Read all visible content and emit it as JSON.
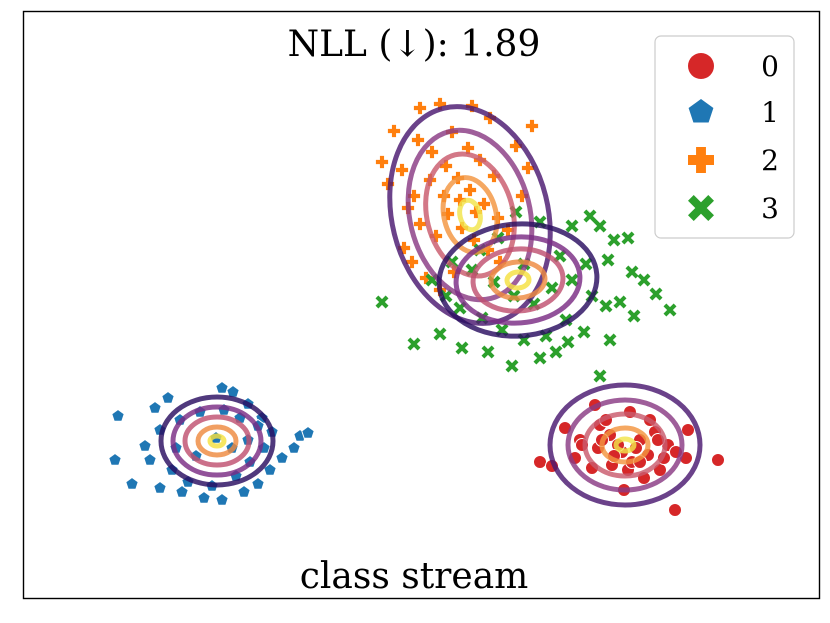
{
  "chart_data": {
    "type": "scatter",
    "title": "NLL (↓): 1.89",
    "xlabel": "class stream",
    "ylabel": "",
    "axes_ticks": false,
    "grid": false,
    "legend": {
      "placement": "top-right",
      "entries": [
        "0",
        "1",
        "2",
        "3"
      ]
    },
    "series": [
      {
        "name": "0",
        "marker": "circle",
        "color": "#d62728",
        "points": [
          [
            595,
            405
          ],
          [
            630,
            412
          ],
          [
            565,
            428
          ],
          [
            580,
            440
          ],
          [
            598,
            448
          ],
          [
            610,
            435
          ],
          [
            622,
            452
          ],
          [
            640,
            440
          ],
          [
            655,
            432
          ],
          [
            668,
            445
          ],
          [
            688,
            430
          ],
          [
            686,
            458
          ],
          [
            660,
            470
          ],
          [
            644,
            478
          ],
          [
            628,
            470
          ],
          [
            612,
            465
          ],
          [
            592,
            468
          ],
          [
            575,
            458
          ],
          [
            540,
            462
          ],
          [
            552,
            466
          ],
          [
            600,
            425
          ],
          [
            618,
            445
          ],
          [
            632,
            462
          ],
          [
            648,
            455
          ],
          [
            664,
            458
          ],
          [
            676,
            452
          ],
          [
            624,
            490
          ],
          [
            675,
            510
          ],
          [
            718,
            460
          ],
          [
            602,
            440
          ],
          [
            614,
            456
          ],
          [
            636,
            448
          ],
          [
            582,
            445
          ],
          [
            650,
            420
          ],
          [
            606,
            420
          ],
          [
            640,
            462
          ],
          [
            658,
            440
          ]
        ],
        "contours": [
          {
            "cx": 625,
            "cy": 445,
            "rx": 75,
            "ry": 60,
            "c": "#4a1870"
          },
          {
            "cx": 625,
            "cy": 445,
            "rx": 57,
            "ry": 45,
            "c": "#8a3a84"
          },
          {
            "cx": 625,
            "cy": 445,
            "rx": 40,
            "ry": 31,
            "c": "#c95a6c"
          },
          {
            "cx": 625,
            "cy": 445,
            "rx": 23,
            "ry": 17,
            "c": "#f39540"
          },
          {
            "cx": 625,
            "cy": 445,
            "rx": 9,
            "ry": 6,
            "c": "#f2e44a"
          }
        ]
      },
      {
        "name": "1",
        "marker": "pentagon",
        "color": "#1f77b4",
        "points": [
          [
            118,
            416
          ],
          [
            155,
            408
          ],
          [
            168,
            398
          ],
          [
            222,
            388
          ],
          [
            233,
            392
          ],
          [
            248,
            404
          ],
          [
            262,
            418
          ],
          [
            272,
            432
          ],
          [
            300,
            436
          ],
          [
            308,
            433
          ],
          [
            294,
            448
          ],
          [
            282,
            458
          ],
          [
            270,
            470
          ],
          [
            258,
            484
          ],
          [
            244,
            492
          ],
          [
            222,
            500
          ],
          [
            204,
            498
          ],
          [
            182,
            492
          ],
          [
            160,
            488
          ],
          [
            132,
            484
          ],
          [
            115,
            460
          ],
          [
            145,
            446
          ],
          [
            150,
            460
          ],
          [
            172,
            470
          ],
          [
            188,
            482
          ],
          [
            212,
            486
          ],
          [
            236,
            476
          ],
          [
            250,
            462
          ],
          [
            264,
            448
          ],
          [
            258,
            426
          ],
          [
            240,
            418
          ],
          [
            224,
            410
          ],
          [
            200,
            412
          ],
          [
            180,
            420
          ],
          [
            160,
            430
          ],
          [
            176,
            448
          ],
          [
            196,
            456
          ],
          [
            216,
            438
          ],
          [
            232,
            448
          ],
          [
            248,
            440
          ]
        ],
        "contours": [
          {
            "cx": 217,
            "cy": 441,
            "rx": 56,
            "ry": 44,
            "c": "#2a0e60"
          },
          {
            "cx": 217,
            "cy": 441,
            "rx": 44,
            "ry": 34,
            "c": "#7a2c84"
          },
          {
            "cx": 217,
            "cy": 441,
            "rx": 32,
            "ry": 24,
            "c": "#c05070"
          },
          {
            "cx": 217,
            "cy": 441,
            "rx": 19,
            "ry": 14,
            "c": "#ee8a40"
          },
          {
            "cx": 217,
            "cy": 441,
            "rx": 7,
            "ry": 5,
            "c": "#f5e040"
          }
        ]
      },
      {
        "name": "2",
        "marker": "plus",
        "color": "#ff7f0e",
        "points": [
          [
            394,
            131
          ],
          [
            420,
            108
          ],
          [
            440,
            104
          ],
          [
            472,
            106
          ],
          [
            490,
            118
          ],
          [
            532,
            126
          ],
          [
            382,
            162
          ],
          [
            388,
            184
          ],
          [
            402,
            170
          ],
          [
            418,
            140
          ],
          [
            432,
            152
          ],
          [
            446,
            166
          ],
          [
            458,
            178
          ],
          [
            470,
            190
          ],
          [
            484,
            204
          ],
          [
            498,
            218
          ],
          [
            508,
            230
          ],
          [
            452,
            132
          ],
          [
            468,
            148
          ],
          [
            480,
            160
          ],
          [
            494,
            176
          ],
          [
            408,
            208
          ],
          [
            420,
            224
          ],
          [
            436,
            236
          ],
          [
            448,
            214
          ],
          [
            462,
            228
          ],
          [
            474,
            240
          ],
          [
            488,
            250
          ],
          [
            500,
            262
          ],
          [
            412,
            262
          ],
          [
            426,
            278
          ],
          [
            440,
            290
          ],
          [
            454,
            272
          ],
          [
            404,
            248
          ],
          [
            444,
            196
          ],
          [
            430,
            180
          ],
          [
            460,
            200
          ],
          [
            476,
            212
          ],
          [
            414,
            196
          ],
          [
            516,
            146
          ],
          [
            528,
            168
          ],
          [
            522,
            196
          ]
        ],
        "contours": [
          {
            "cx": 470,
            "cy": 215,
            "rx": 78,
            "ry": 110,
            "rot": -14,
            "c": "#4a1870"
          },
          {
            "cx": 470,
            "cy": 215,
            "rx": 60,
            "ry": 86,
            "rot": -14,
            "c": "#8a3a84"
          },
          {
            "cx": 470,
            "cy": 215,
            "rx": 43,
            "ry": 62,
            "rot": -14,
            "c": "#c95a6c"
          },
          {
            "cx": 470,
            "cy": 215,
            "rx": 26,
            "ry": 38,
            "rot": -14,
            "c": "#f39540"
          },
          {
            "cx": 470,
            "cy": 215,
            "rx": 10,
            "ry": 15,
            "rot": -14,
            "c": "#f2e44a"
          }
        ]
      },
      {
        "name": "3",
        "marker": "x",
        "color": "#2ca02c",
        "points": [
          [
            382,
            302
          ],
          [
            414,
            344
          ],
          [
            440,
            334
          ],
          [
            462,
            348
          ],
          [
            488,
            352
          ],
          [
            512,
            366
          ],
          [
            540,
            358
          ],
          [
            556,
            352
          ],
          [
            568,
            342
          ],
          [
            590,
            216
          ],
          [
            572,
            226
          ],
          [
            614,
            240
          ],
          [
            628,
            238
          ],
          [
            608,
            260
          ],
          [
            632,
            272
          ],
          [
            644,
            280
          ],
          [
            656,
            294
          ],
          [
            670,
            310
          ],
          [
            634,
            316
          ],
          [
            610,
            340
          ],
          [
            600,
            376
          ],
          [
            584,
            332
          ],
          [
            566,
            320
          ],
          [
            546,
            336
          ],
          [
            524,
            340
          ],
          [
            502,
            330
          ],
          [
            482,
            318
          ],
          [
            460,
            308
          ],
          [
            446,
            296
          ],
          [
            432,
            280
          ],
          [
            452,
            262
          ],
          [
            472,
            270
          ],
          [
            494,
            282
          ],
          [
            514,
            296
          ],
          [
            534,
            304
          ],
          [
            552,
            288
          ],
          [
            572,
            280
          ],
          [
            592,
            296
          ],
          [
            606,
            306
          ],
          [
            620,
            302
          ],
          [
            600,
            226
          ],
          [
            540,
            222
          ],
          [
            516,
            212
          ],
          [
            498,
            238
          ],
          [
            480,
            250
          ],
          [
            524,
            264
          ],
          [
            560,
            256
          ],
          [
            586,
            264
          ]
        ],
        "contours": [
          {
            "cx": 518,
            "cy": 280,
            "rx": 79,
            "ry": 56,
            "rot": -4,
            "c": "#2a0e60"
          },
          {
            "cx": 518,
            "cy": 280,
            "rx": 62,
            "ry": 43,
            "rot": -4,
            "c": "#7a2c84"
          },
          {
            "cx": 518,
            "cy": 280,
            "rx": 45,
            "ry": 31,
            "rot": -4,
            "c": "#c05070"
          },
          {
            "cx": 518,
            "cy": 280,
            "rx": 27,
            "ry": 18,
            "rot": -4,
            "c": "#ee8a40"
          },
          {
            "cx": 518,
            "cy": 280,
            "rx": 11,
            "ry": 8,
            "rot": -4,
            "c": "#f5e040"
          }
        ]
      }
    ]
  }
}
